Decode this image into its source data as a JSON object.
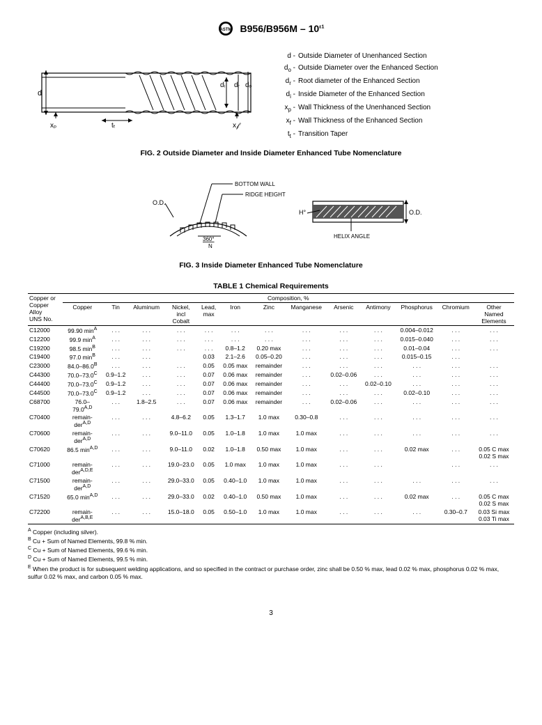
{
  "header": {
    "standard": "B956/B956M – 10",
    "eps": "ε1"
  },
  "fig2": {
    "legend": [
      {
        "sym_html": "d",
        "text": "Outside Diameter of Unenhanced Section"
      },
      {
        "sym_html": "d<sub>o</sub>",
        "text": "Outside Diameter over the Enhanced Section"
      },
      {
        "sym_html": "d<sub>r</sub>",
        "text": "Root diameter of the Enhanced Section"
      },
      {
        "sym_html": "d<sub>i</sub>",
        "text": "Inside Diameter of the Enhanced Section"
      },
      {
        "sym_html": "x<sub>p</sub>",
        "text": "Wall Thickness of the Unenhanced Section"
      },
      {
        "sym_html": "x<sub>f</sub>",
        "text": "Wall Thickness of the Enhanced Section"
      },
      {
        "sym_html": "t<sub>t</sub>",
        "text": "Transition Taper"
      }
    ],
    "caption": "FIG. 2 Outside Diameter and Inside Diameter Enhanced Tube Nomenclature",
    "diagram_labels": {
      "d": "d",
      "di": "dᵢ",
      "dr": "dᵣ",
      "do": "dₒ",
      "xp": "xₚ",
      "tt": "tₜ",
      "xf": "x𝒻"
    }
  },
  "fig3": {
    "labels": {
      "od": "O.D.",
      "bottom_wall": "BOTTOM WALL",
      "ridge_height": "RIDGE HEIGHT",
      "angle": "360°",
      "n": "N",
      "h": "H°",
      "helix": "HELIX ANGLE"
    },
    "caption": "FIG. 3 Inside Diameter Enhanced Tube Nomenclature"
  },
  "table1": {
    "title": "TABLE 1 Chemical Requirements",
    "head1": "Composition, %",
    "columns": [
      "Copper or\nCopper\nAlloy\nUNS No.",
      "Copper",
      "Tin",
      "Aluminum",
      "Nickel,\nincl\nCobalt",
      "Lead,\nmax",
      "Iron",
      "Zinc",
      "Manganese",
      "Arsenic",
      "Antimony",
      "Phosphorus",
      "Chromium",
      "Other\nNamed\nElements"
    ],
    "rows": [
      [
        "C12000",
        "99.90 min<sup>A</sup>",
        ". . .",
        ". . .",
        ". . .",
        ". . .",
        ". . .",
        ". . .",
        ". . .",
        ". . .",
        ". . .",
        "0.004–0.012",
        ". . .",
        ". . ."
      ],
      [
        "C12200",
        "99.9 min<sup>A</sup>",
        ". . .",
        ". . .",
        ". . .",
        ". . .",
        ". . .",
        ". . .",
        ". . .",
        ". . .",
        ". . .",
        "0.015–0.040",
        ". . .",
        ". . ."
      ],
      [
        "C19200",
        "98.5 min<sup>B</sup>",
        ". . .",
        ". . .",
        ". . .",
        ". . .",
        "0.8–1.2",
        "0.20 max",
        ". . .",
        ". . .",
        ". . .",
        "0.01–0.04",
        ". . .",
        ". . ."
      ],
      [
        "C19400",
        "97.0 min<sup>B</sup>",
        ". . .",
        ". . .",
        "",
        "0.03",
        "2.1–2.6",
        "0.05–0.20",
        ". . .",
        ". . .",
        ". . .",
        "0.015–0.15",
        ". . .",
        ""
      ],
      [
        "C23000",
        "84.0–86.0<sup>B</sup>",
        ". . .",
        ". . .",
        ". . .",
        "0.05",
        "0.05 max",
        "remainder",
        ". . .",
        ". . .",
        ". . .",
        ". . .",
        ". . .",
        ". . ."
      ],
      [
        "C44300",
        "70.0–73.0<sup>C</sup>",
        "0.9–1.2",
        ". . .",
        ". . .",
        "0.07",
        "0.06 max",
        "remainder",
        ". . .",
        "0.02–0.06",
        ". . .",
        ". . .",
        ". . .",
        ". . ."
      ],
      [
        "C44400",
        "70.0–73.0<sup>C</sup>",
        "0.9–1.2",
        ". . .",
        ". . .",
        "0.07",
        "0.06 max",
        "remainder",
        ". . .",
        ". . .",
        "0.02–0.10",
        ". . .",
        ". . .",
        ". . ."
      ],
      [
        "C44500",
        "70.0–73.0<sup>C</sup>",
        "0.9–1.2",
        ". . .",
        ". . .",
        "0.07",
        "0.06 max",
        "remainder",
        ". . .",
        ". . .",
        ". . .",
        "0.02–0.10",
        ". . .",
        ". . ."
      ],
      [
        "C68700",
        "76.0–\n79.0<sup>A,D</sup>",
        ". . .",
        "1.8–2.5",
        ". . .",
        "0.07",
        "0.06 max",
        "remainder",
        ". . .",
        "0.02–0.06",
        ". . .",
        ". . .",
        ". . .",
        ". . ."
      ],
      [
        "C70400",
        "remain-\nder<sup>A,D</sup>",
        ". . .",
        ". . .",
        "4.8–6.2",
        "0.05",
        "1.3–1.7",
        "1.0 max",
        "0.30–0.8",
        ". . .",
        ". . .",
        ". . .",
        ". . .",
        ". . ."
      ],
      [
        "C70600",
        "remain-\nder<sup>A,D</sup>",
        ". . .",
        ". . .",
        "9.0–11.0",
        "0.05",
        "1.0–1.8",
        "1.0 max",
        "1.0 max",
        ". . .",
        ". . .",
        ". . .",
        ". . .",
        ". . ."
      ],
      [
        "C70620",
        "86.5 min<sup>A,D</sup>",
        ". . .",
        ". . .",
        "9.0–11.0",
        "0.02",
        "1.0–1.8",
        "0.50 max",
        "1.0 max",
        ". . .",
        ". . .",
        "0.02 max",
        ". . .",
        "0.05 C max\n0.02 S max"
      ],
      [
        "C71000",
        "remain-\nder<sup>A,D,E</sup>",
        ". . .",
        ". . .",
        "19.0–23.0",
        "0.05",
        "1.0 max",
        "1.0 max",
        "1.0 max",
        ". . .",
        ". . .",
        "",
        ". . .",
        ". . ."
      ],
      [
        "C71500",
        "remain-\nder<sup>A,D</sup>",
        ". . .",
        ". . .",
        "29.0–33.0",
        "0.05",
        "0.40–1.0",
        "1.0 max",
        "1.0 max",
        ". . .",
        ". . .",
        ". . .",
        ". . .",
        ". . ."
      ],
      [
        "C71520",
        "65.0 min<sup>A,D</sup>",
        ". . .",
        ". . .",
        "29.0–33.0",
        "0.02",
        "0.40–1.0",
        "0.50 max",
        "1.0 max",
        ". . .",
        ". . .",
        "0.02 max",
        ". . .",
        "0.05 C max\n0.02 S max"
      ],
      [
        "C72200",
        "remain-\nder<sup>A,B,E</sup>",
        ". . .",
        ". . .",
        "15.0–18.0",
        "0.05",
        "0.50–1.0",
        "1.0 max",
        "1.0 max",
        ". . .",
        ". . .",
        ". . .",
        "0.30–0.7",
        "0.03 Si max\n0.03 Ti max"
      ]
    ],
    "footnotes": [
      "<sup>A</sup> Copper (including silver).",
      "<sup>B</sup> Cu + Sum of Named Elements, 99.8 % min.",
      "<sup>C</sup> Cu + Sum of Named Elements, 99.6 % min.",
      "<sup>D</sup> Cu + Sum of Named Elements, 99.5 % min.",
      "<sup>E</sup> When the product is for subsequent welding applications, and so specified in the contract or purchase order, zinc shall be 0.50 % max, lead 0.02 % max, phosphorus 0.02 % max, sulfur 0.02 % max, and carbon 0.05 % max."
    ]
  },
  "pagenum": "3"
}
